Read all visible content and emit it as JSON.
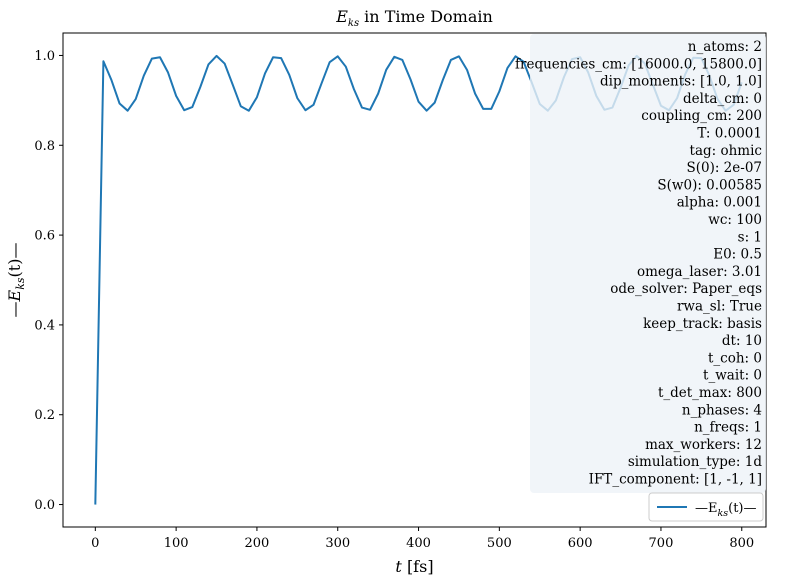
{
  "chart_data": {
    "type": "line",
    "title": "E_ks in Time Domain",
    "title_main": "E",
    "title_sub": "ks",
    "title_rest": " in Time Domain",
    "xlabel_main": "t",
    "xlabel_rest": "[fs]",
    "ylabel_pre": "—E",
    "ylabel_sub": "ks",
    "ylabel_rest": "(t)—",
    "xlim": [
      -40,
      830
    ],
    "ylim": [
      -0.05,
      1.05
    ],
    "xticks": [
      0,
      100,
      200,
      300,
      400,
      500,
      600,
      700,
      800
    ],
    "xtick_labels": [
      "0",
      "100",
      "200",
      "300",
      "400",
      "500",
      "600",
      "700",
      "800"
    ],
    "yticks": [
      0.0,
      0.2,
      0.4,
      0.6,
      0.8,
      1.0
    ],
    "ytick_labels": [
      "0.0",
      "0.2",
      "0.4",
      "0.6",
      "0.8",
      "1.0"
    ],
    "grid": false,
    "legend_position": "lower right",
    "series": [
      {
        "name": "—E_ks(t)—",
        "color": "#1f77b4",
        "x": [
          0,
          10,
          20,
          30,
          40,
          50,
          60,
          70,
          80,
          90,
          100,
          110,
          120,
          130,
          140,
          150,
          160,
          170,
          180,
          190,
          200,
          210,
          220,
          230,
          240,
          250,
          260,
          270,
          280,
          290,
          300,
          310,
          320,
          330,
          340,
          350,
          360,
          370,
          380,
          390,
          400,
          410,
          420,
          430,
          440,
          450,
          460,
          470,
          480,
          490,
          500,
          510,
          520,
          530,
          540,
          550,
          560,
          570,
          580,
          590,
          600,
          610,
          620,
          630,
          640,
          650,
          660,
          670,
          680,
          690,
          700,
          710,
          720,
          730,
          740,
          750,
          760,
          770,
          780,
          790,
          800
        ],
        "y": [
          0.0,
          0.987,
          0.945,
          0.893,
          0.877,
          0.903,
          0.955,
          0.993,
          0.996,
          0.962,
          0.91,
          0.878,
          0.885,
          0.93,
          0.98,
          0.999,
          0.982,
          0.935,
          0.887,
          0.877,
          0.907,
          0.96,
          0.996,
          0.994,
          0.957,
          0.905,
          0.878,
          0.89,
          0.938,
          0.985,
          0.998,
          0.975,
          0.925,
          0.884,
          0.879,
          0.915,
          0.968,
          0.997,
          0.99,
          0.947,
          0.897,
          0.877,
          0.895,
          0.945,
          0.99,
          0.998,
          0.968,
          0.915,
          0.881,
          0.881,
          0.92,
          0.972,
          0.998,
          0.986,
          0.94,
          0.892,
          0.877,
          0.9,
          0.952,
          0.992,
          0.996,
          0.962,
          0.91,
          0.879,
          0.884,
          0.928,
          0.978,
          0.999,
          0.982,
          0.935,
          0.888,
          0.878,
          0.905,
          0.958,
          0.995,
          0.994,
          0.955,
          0.903,
          0.877,
          0.89,
          0.94
        ]
      }
    ],
    "legend": {
      "label_pre": "—E",
      "label_sub": "ks",
      "label_rest": "(t)—"
    },
    "info_box": [
      "n_atoms: 2",
      "frequencies_cm: [16000.0, 15800.0]",
      "dip_moments: [1.0, 1.0]",
      "delta_cm: 0",
      "coupling_cm: 200",
      "T: 0.0001",
      "tag: ohmic",
      "S(0): 2e-07",
      "S(w0): 0.00585",
      "alpha: 0.001",
      "wc: 100",
      "s: 1",
      "E0: 0.5",
      "omega_laser: 3.01",
      "ode_solver: Paper_eqs",
      "rwa_sl: True",
      "keep_track: basis",
      "dt: 10",
      "t_coh: 0",
      "t_wait: 0",
      "t_det_max: 800",
      "n_phases: 4",
      "n_freqs: 1",
      "max_workers: 12",
      "simulation_type: 1d",
      "IFT_component: [1, -1, 1]"
    ],
    "info_box_color": "#eef3f8"
  }
}
